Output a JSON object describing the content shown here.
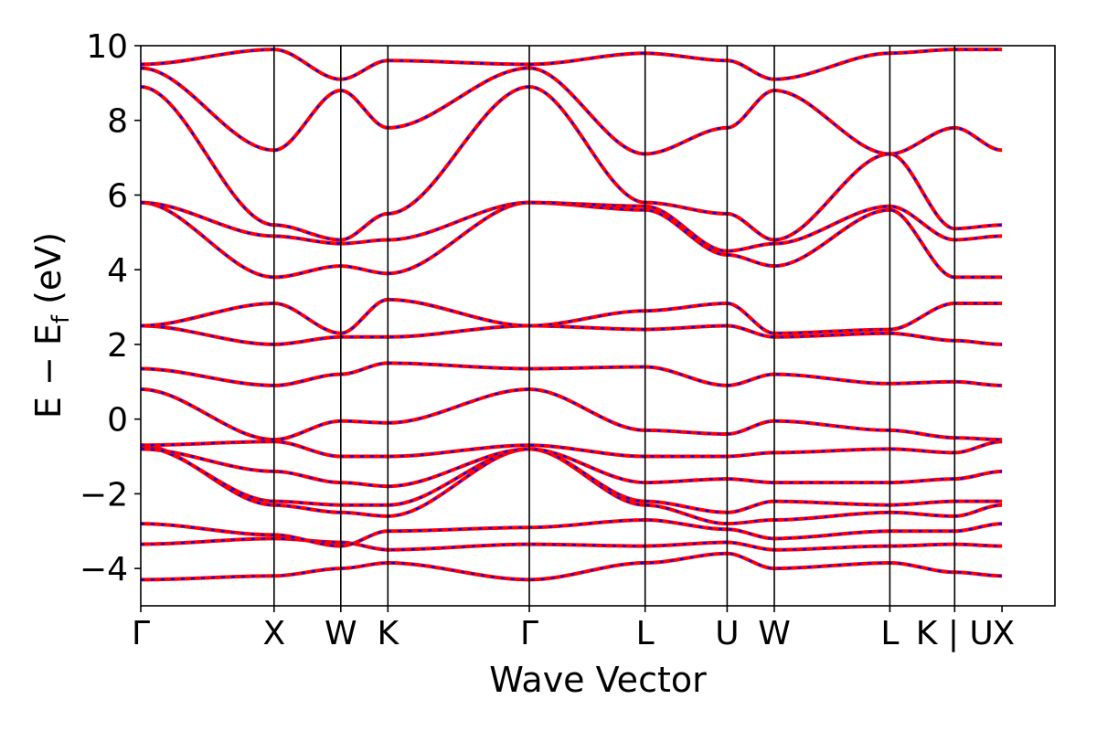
{
  "chart_data": {
    "type": "line",
    "title": "",
    "xlabel": "Wave Vector",
    "ylabel": "E − E_f (eV)",
    "ylabel_parts": {
      "main": "E − E",
      "sub": "f",
      "unit": " (eV)"
    },
    "ylim": [
      -5,
      10
    ],
    "yticks": [
      -4,
      -2,
      0,
      2,
      4,
      6,
      8,
      10
    ],
    "ytick_labels": [
      "−4",
      "−2",
      "0",
      "2",
      "4",
      "6",
      "8",
      "10"
    ],
    "xlim": [
      0,
      1
    ],
    "kpoint_positions": [
      0.0,
      0.1458,
      0.2188,
      0.2703,
      0.425,
      0.5517,
      0.6414,
      0.693,
      0.8194,
      0.8903,
      0.9421
    ],
    "kpoint_labels": [
      "Γ",
      "X",
      "W",
      "K",
      "Γ",
      "L",
      "U",
      "W",
      "L",
      "K | U",
      "X"
    ],
    "series_style": [
      {
        "color": "#ff0000",
        "dash": "solid"
      },
      {
        "color": "#0000ff",
        "dash": "dashed"
      }
    ],
    "band_energies_eV": [
      [
        -4.3,
        -4.2,
        -4.0,
        -3.85,
        -4.3,
        -3.85,
        -3.6,
        -4.0,
        -3.85,
        -4.1,
        -4.2
      ],
      [
        -3.35,
        -3.2,
        -3.3,
        -3.5,
        -3.35,
        -3.4,
        -3.3,
        -3.5,
        -3.4,
        -3.35,
        -3.4
      ],
      [
        -2.8,
        -3.1,
        -3.4,
        -3.0,
        -2.9,
        -2.7,
        -2.95,
        -3.2,
        -3.0,
        -3.0,
        -2.8
      ],
      [
        -0.7,
        -2.3,
        -2.5,
        -2.6,
        -0.8,
        -2.3,
        -2.8,
        -2.7,
        -2.5,
        -2.6,
        -2.3
      ],
      [
        -0.75,
        -2.2,
        -2.3,
        -2.3,
        -0.8,
        -2.2,
        -2.5,
        -2.2,
        -2.3,
        -2.2,
        -2.2
      ],
      [
        -0.8,
        -1.4,
        -1.7,
        -1.8,
        -0.8,
        -1.7,
        -1.6,
        -1.7,
        -1.7,
        -1.6,
        -1.4
      ],
      [
        -0.7,
        -0.6,
        -1.0,
        -1.0,
        -0.7,
        -1.0,
        -1.0,
        -0.9,
        -0.8,
        -0.9,
        -0.6
      ],
      [
        0.8,
        -0.55,
        -0.05,
        -0.1,
        0.8,
        -0.3,
        -0.4,
        -0.05,
        -0.3,
        -0.5,
        -0.55
      ],
      [
        1.35,
        0.9,
        1.2,
        1.5,
        1.35,
        1.4,
        0.9,
        1.2,
        0.95,
        1.0,
        0.9
      ],
      [
        2.5,
        2.0,
        2.2,
        2.2,
        2.5,
        2.4,
        2.5,
        2.2,
        2.3,
        2.1,
        2.0
      ],
      [
        2.5,
        3.1,
        2.3,
        3.2,
        2.5,
        2.9,
        3.1,
        2.3,
        2.4,
        3.1,
        3.1
      ],
      [
        5.8,
        3.8,
        4.1,
        3.9,
        5.8,
        5.6,
        4.4,
        4.1,
        5.6,
        3.8,
        3.8
      ],
      [
        5.8,
        4.9,
        4.7,
        4.8,
        5.8,
        5.7,
        4.5,
        4.7,
        5.7,
        4.8,
        4.9
      ],
      [
        8.9,
        5.2,
        4.8,
        5.5,
        8.9,
        5.8,
        5.5,
        4.8,
        7.1,
        5.1,
        5.2
      ],
      [
        9.4,
        7.2,
        8.8,
        7.8,
        9.4,
        7.1,
        7.8,
        8.8,
        7.1,
        7.8,
        7.2
      ],
      [
        9.5,
        9.9,
        9.1,
        9.6,
        9.5,
        9.8,
        9.6,
        9.1,
        9.8,
        9.9,
        9.9
      ]
    ]
  }
}
